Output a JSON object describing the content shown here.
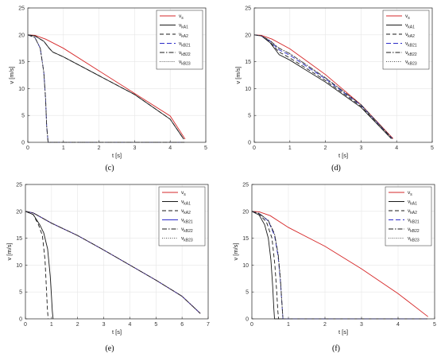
{
  "chart_data": [
    {
      "type": "line",
      "panel": "c",
      "caption": "(c)",
      "xlabel": "t [s]",
      "ylabel": "v [m/s]",
      "xlim": [
        0,
        5
      ],
      "ylim": [
        0,
        25
      ],
      "xticks": [
        0,
        1,
        2,
        3,
        4,
        5
      ],
      "yticks": [
        0,
        5,
        10,
        15,
        20,
        25
      ],
      "legend": "top-right",
      "series": [
        {
          "name": "vs",
          "color": "#d62728",
          "dash": "",
          "x": [
            0,
            0.2,
            0.5,
            1,
            2,
            3,
            4,
            4.42
          ],
          "y": [
            20,
            19.9,
            19.2,
            17.5,
            13.3,
            9.1,
            4.9,
            0.6
          ]
        },
        {
          "name": "vkA1",
          "color": "#1a1a1a",
          "dash": "",
          "x": [
            0,
            0.2,
            0.45,
            0.6,
            0.7,
            1,
            2,
            3,
            4,
            4.38
          ],
          "y": [
            20,
            19.8,
            18.8,
            17.5,
            16.8,
            15.9,
            12.4,
            8.9,
            4.3,
            0.6
          ]
        },
        {
          "name": "vkA2",
          "color": "#1a1a1a",
          "dash": "5,3",
          "x": [
            0,
            0.2,
            0.45,
            0.6,
            0.7,
            1,
            2,
            3,
            4,
            4.38
          ],
          "y": [
            20,
            19.8,
            18.8,
            17.5,
            16.8,
            15.9,
            12.4,
            8.9,
            4.3,
            0.6
          ]
        },
        {
          "name": "vkB21",
          "color": "#2c2cc8",
          "dash": "6,3",
          "x": [
            0,
            0.2,
            0.35,
            0.45,
            0.5,
            0.53,
            0.57,
            1,
            2,
            3,
            4,
            4.4
          ],
          "y": [
            20,
            19.5,
            17.5,
            13,
            8,
            3,
            0,
            0,
            0,
            0,
            0,
            0
          ]
        },
        {
          "name": "vkB22",
          "color": "#1a1a1a",
          "dash": "6,2,1.5,2",
          "x": [
            0,
            0.2,
            0.35,
            0.45,
            0.5,
            0.53,
            0.57,
            1,
            2,
            3,
            4,
            4.4
          ],
          "y": [
            20,
            19.5,
            17.5,
            13,
            8,
            3,
            0,
            0,
            0,
            0,
            0,
            0
          ]
        },
        {
          "name": "vkB23",
          "color": "#555555",
          "dash": "1,1.5",
          "x": [
            0,
            0.2,
            0.35,
            0.45,
            0.5,
            0.53,
            0.57,
            1,
            2,
            3,
            4,
            4.4
          ],
          "y": [
            20,
            19.5,
            17.5,
            13,
            8,
            3,
            0,
            0,
            0,
            0,
            0,
            0
          ]
        }
      ]
    },
    {
      "type": "line",
      "panel": "d",
      "caption": "(d)",
      "xlabel": "t [s]",
      "ylabel": "v [m/s]",
      "xlim": [
        0,
        5
      ],
      "ylim": [
        0,
        25
      ],
      "xticks": [
        0,
        1,
        2,
        3,
        4,
        5
      ],
      "yticks": [
        0,
        5,
        10,
        15,
        20,
        25
      ],
      "legend": "top-right",
      "series": [
        {
          "name": "vs",
          "color": "#d62728",
          "dash": "",
          "x": [
            0,
            0.2,
            0.5,
            1,
            2,
            3,
            3.9
          ],
          "y": [
            20,
            19.9,
            19.2,
            17.4,
            12.6,
            7.0,
            0.7
          ]
        },
        {
          "name": "vkA1",
          "color": "#1a1a1a",
          "dash": "",
          "x": [
            0,
            0.2,
            0.45,
            0.6,
            0.7,
            1,
            2,
            3,
            3.85
          ],
          "y": [
            20,
            19.8,
            18.5,
            17.2,
            16.3,
            15.3,
            11.2,
            6.5,
            0.7
          ]
        },
        {
          "name": "vkA2",
          "color": "#1a1a1a",
          "dash": "5,3",
          "x": [
            0,
            0.2,
            0.45,
            0.6,
            0.7,
            1,
            2,
            3,
            3.85
          ],
          "y": [
            20,
            19.8,
            18.6,
            17.5,
            16.8,
            15.7,
            11.5,
            6.7,
            0.7
          ]
        },
        {
          "name": "vkB21",
          "color": "#2c2cc8",
          "dash": "6,3",
          "x": [
            0,
            0.2,
            0.45,
            0.6,
            0.7,
            1,
            2,
            3,
            3.88
          ],
          "y": [
            20,
            19.8,
            18.8,
            17.8,
            17.2,
            16.2,
            11.8,
            6.9,
            0.7
          ]
        },
        {
          "name": "vkB22",
          "color": "#1a1a1a",
          "dash": "6,2,1.5,2",
          "x": [
            0,
            0.2,
            0.45,
            0.6,
            0.7,
            1,
            2,
            3,
            3.88
          ],
          "y": [
            20,
            19.8,
            18.9,
            18.0,
            17.5,
            16.5,
            12.0,
            7.0,
            0.7
          ]
        },
        {
          "name": "vkB23",
          "color": "#555555",
          "dash": "1,1.5",
          "x": [
            0,
            0.2,
            0.45,
            0.6,
            0.7,
            1,
            2,
            3,
            3.88
          ],
          "y": [
            20,
            19.8,
            18.9,
            18.0,
            17.5,
            16.5,
            12.0,
            7.0,
            0.7
          ]
        }
      ]
    },
    {
      "type": "line",
      "panel": "e",
      "caption": "(e)",
      "xlabel": "t [s]",
      "ylabel": "v [m/s]",
      "xlim": [
        0,
        7
      ],
      "ylim": [
        0,
        25
      ],
      "xticks": [
        0,
        1,
        2,
        3,
        4,
        5,
        6,
        7
      ],
      "yticks": [
        0,
        5,
        10,
        15,
        20,
        25
      ],
      "legend": "top-right",
      "series": [
        {
          "name": "vs",
          "color": "#d62728",
          "dash": "",
          "x": [
            0,
            0.3,
            1,
            2,
            3,
            4,
            5,
            6,
            6.7
          ],
          "y": [
            20,
            19.7,
            17.8,
            15.5,
            12.8,
            10.0,
            7.2,
            4.2,
            1.0
          ]
        },
        {
          "name": "vkA1",
          "color": "#1a1a1a",
          "dash": "",
          "x": [
            0,
            0.3,
            0.55,
            0.7,
            0.85,
            0.95,
            1.0,
            1.03,
            1.06
          ],
          "y": [
            20,
            19.4,
            17.5,
            16.0,
            13.0,
            8.0,
            4.0,
            1.5,
            0
          ]
        },
        {
          "name": "vkA2",
          "color": "#1a1a1a",
          "dash": "5,3",
          "x": [
            0,
            0.3,
            0.5,
            0.65,
            0.75,
            0.8,
            0.84,
            0.87
          ],
          "y": [
            20,
            19.4,
            17.5,
            15.5,
            11.0,
            6.0,
            2.0,
            0
          ]
        },
        {
          "name": "vkB21",
          "color": "#2c2cc8",
          "dash": "",
          "x": [
            0,
            0.3,
            1,
            2,
            3,
            4,
            5,
            6,
            6.7
          ],
          "y": [
            20,
            19.7,
            17.8,
            15.5,
            12.8,
            10.0,
            7.2,
            4.2,
            1.0
          ]
        },
        {
          "name": "vkB22",
          "color": "#1a1a1a",
          "dash": "6,2,1.5,2",
          "x": [
            0,
            0.3,
            1,
            2,
            3,
            4,
            5,
            6,
            6.7
          ],
          "y": [
            20,
            19.7,
            17.8,
            15.5,
            12.8,
            10.0,
            7.2,
            4.2,
            1.0
          ]
        },
        {
          "name": "vkB23",
          "color": "#555555",
          "dash": "1,1.5",
          "x": [
            0,
            0.3,
            1,
            2,
            3,
            4,
            5,
            6,
            6.7
          ],
          "y": [
            20,
            19.7,
            17.8,
            15.5,
            12.8,
            10.0,
            7.2,
            4.2,
            1.0
          ]
        }
      ]
    },
    {
      "type": "line",
      "panel": "f",
      "caption": "(f)",
      "xlabel": "t [s]",
      "ylabel": "v [m/s]",
      "xlim": [
        0,
        5
      ],
      "ylim": [
        0,
        25
      ],
      "xticks": [
        0,
        1,
        2,
        3,
        4,
        5
      ],
      "yticks": [
        0,
        5,
        10,
        15,
        20,
        25
      ],
      "legend": "top-right",
      "series": [
        {
          "name": "vs",
          "color": "#d62728",
          "dash": "",
          "x": [
            0,
            0.2,
            0.5,
            1,
            2,
            3,
            4,
            4.82
          ],
          "y": [
            20,
            19.9,
            19.2,
            17.0,
            13.5,
            9.3,
            4.7,
            0.4
          ]
        },
        {
          "name": "vkA1",
          "color": "#1a1a1a",
          "dash": "",
          "x": [
            0,
            0.2,
            0.35,
            0.45,
            0.52,
            0.57,
            0.6,
            0.62,
            0.7,
            1,
            2,
            3,
            4,
            4.8
          ],
          "y": [
            20,
            19.3,
            17.5,
            15.0,
            11.0,
            6.0,
            2.0,
            0,
            0,
            0,
            0,
            0,
            0,
            0
          ]
        },
        {
          "name": "vkA2",
          "color": "#1a1a1a",
          "dash": "5,3",
          "x": [
            0,
            0.2,
            0.4,
            0.55,
            0.63,
            0.68,
            0.71,
            0.73
          ],
          "y": [
            20,
            19.5,
            18.0,
            15.0,
            10.0,
            5.0,
            1.5,
            0
          ]
        },
        {
          "name": "vkB21",
          "color": "#2c2cc8",
          "dash": "6,3",
          "x": [
            0,
            0.2,
            0.45,
            0.62,
            0.72,
            0.78,
            0.82,
            0.85,
            1,
            2,
            3,
            4,
            4.8
          ],
          "y": [
            20,
            19.6,
            18.2,
            15.5,
            11.5,
            7.0,
            3.0,
            0,
            0,
            0,
            0,
            0,
            0
          ]
        },
        {
          "name": "vkB22",
          "color": "#1a1a1a",
          "dash": "6,2,1.5,2",
          "x": [
            0,
            0.2,
            0.45,
            0.62,
            0.72,
            0.78,
            0.82,
            0.85
          ],
          "y": [
            20,
            19.6,
            18.3,
            15.8,
            12.0,
            7.5,
            3.2,
            0
          ]
        },
        {
          "name": "vkB23",
          "color": "#555555",
          "dash": "1,1.5",
          "x": [
            0,
            0.2,
            0.45,
            0.62,
            0.72,
            0.78,
            0.82,
            0.85
          ],
          "y": [
            20,
            19.6,
            18.3,
            15.8,
            12.0,
            7.5,
            3.2,
            0
          ]
        }
      ]
    }
  ],
  "legend_labels": [
    {
      "base": "v",
      "sub": "s"
    },
    {
      "base": "v",
      "sub": "kA1"
    },
    {
      "base": "v",
      "sub": "kA2"
    },
    {
      "base": "v",
      "sub": "kB21"
    },
    {
      "base": "v",
      "sub": "kB22"
    },
    {
      "base": "v",
      "sub": "kB23"
    }
  ]
}
